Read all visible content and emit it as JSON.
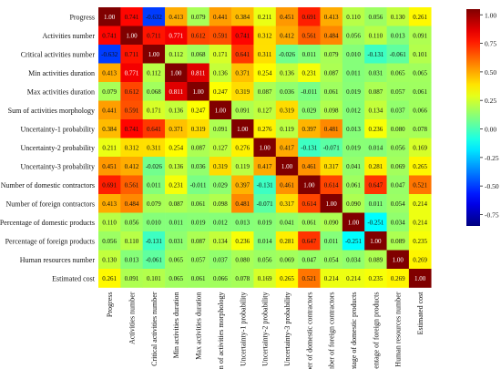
{
  "chart_data": {
    "type": "heatmap",
    "title": "",
    "xlabel": "",
    "ylabel": "",
    "variables": [
      "Progress",
      "Activities number",
      "Critical activities number",
      "Min activities duration",
      "Max activities duration",
      "Sum of activities morphology",
      "Uncertainty-1 probability",
      "Uncertainty-2 probability",
      "Uncertainty-3 probability",
      "Number of domestic contractors",
      "Number of foreign contractors",
      "Percentage of domestic products",
      "Percentage of foreign products",
      "Human resources number",
      "Estimated cost"
    ],
    "matrix": [
      [
        1.0,
        0.741,
        -0.632,
        0.413,
        0.079,
        0.441,
        0.384,
        0.211,
        0.451,
        0.691,
        0.413,
        0.11,
        0.056,
        0.13,
        0.261
      ],
      [
        0.741,
        1.0,
        0.711,
        0.771,
        0.612,
        0.591,
        0.741,
        0.312,
        0.412,
        0.561,
        0.484,
        0.056,
        0.11,
        0.013,
        0.091
      ],
      [
        -0.632,
        0.711,
        1.0,
        0.112,
        0.068,
        0.171,
        0.641,
        0.311,
        -0.026,
        0.011,
        0.079,
        0.01,
        -0.131,
        -0.061,
        0.101
      ],
      [
        0.413,
        0.771,
        0.112,
        1.0,
        0.811,
        0.136,
        0.371,
        0.254,
        0.136,
        0.231,
        0.087,
        0.011,
        0.031,
        0.065,
        0.065
      ],
      [
        0.079,
        0.612,
        0.068,
        0.811,
        1.0,
        0.247,
        0.319,
        0.087,
        0.036,
        -0.011,
        0.061,
        0.019,
        0.087,
        0.057,
        0.061
      ],
      [
        0.441,
        0.591,
        0.171,
        0.136,
        0.247,
        1.0,
        0.091,
        0.127,
        0.319,
        0.029,
        0.098,
        0.012,
        0.134,
        0.037,
        0.066
      ],
      [
        0.384,
        0.741,
        0.641,
        0.371,
        0.319,
        0.091,
        1.0,
        0.276,
        0.119,
        0.397,
        0.481,
        0.013,
        0.236,
        0.08,
        0.078
      ],
      [
        0.211,
        0.312,
        0.311,
        0.254,
        0.087,
        0.127,
        0.276,
        1.0,
        0.417,
        -0.131,
        -0.071,
        0.019,
        0.014,
        0.056,
        0.169
      ],
      [
        0.451,
        0.412,
        -0.026,
        0.136,
        0.036,
        0.319,
        0.119,
        0.417,
        1.0,
        0.461,
        0.317,
        0.041,
        0.281,
        0.069,
        0.265
      ],
      [
        0.691,
        0.561,
        0.011,
        0.231,
        -0.011,
        0.029,
        0.397,
        -0.131,
        0.461,
        1.0,
        0.614,
        0.061,
        0.647,
        0.047,
        0.521
      ],
      [
        0.413,
        0.484,
        0.079,
        0.087,
        0.061,
        0.098,
        0.481,
        -0.071,
        0.317,
        0.614,
        1.0,
        0.09,
        0.011,
        0.054,
        0.214
      ],
      [
        0.11,
        0.056,
        0.01,
        0.011,
        0.019,
        0.012,
        0.013,
        0.019,
        0.041,
        0.061,
        0.09,
        1.0,
        -0.251,
        0.034,
        0.214
      ],
      [
        0.056,
        0.11,
        -0.131,
        0.031,
        0.087,
        0.134,
        0.236,
        0.014,
        0.281,
        0.647,
        0.011,
        -0.251,
        1.0,
        0.089,
        0.235
      ],
      [
        0.13,
        0.013,
        -0.061,
        0.065,
        0.057,
        0.037,
        0.08,
        0.056,
        0.069,
        0.047,
        0.054,
        0.034,
        0.089,
        1.0,
        0.269
      ],
      [
        0.261,
        0.091,
        0.101,
        0.065,
        0.061,
        0.066,
        0.078,
        0.169,
        0.265,
        0.521,
        0.214,
        0.214,
        0.235,
        0.269,
        1.0
      ]
    ],
    "value_range": [
      -1.0,
      1.0
    ],
    "colorscale": "jet",
    "colorbar_ticks": [
      "1.00",
      "0.75",
      "0.50",
      "0.25",
      "0.00",
      "-0.25",
      "-0.50",
      "-0.75"
    ],
    "colorbar_tick_values": [
      1.0,
      0.75,
      0.5,
      0.25,
      0.0,
      -0.25,
      -0.5,
      -0.75
    ],
    "colorbar_position": "right",
    "grid": false,
    "legend": "none"
  }
}
